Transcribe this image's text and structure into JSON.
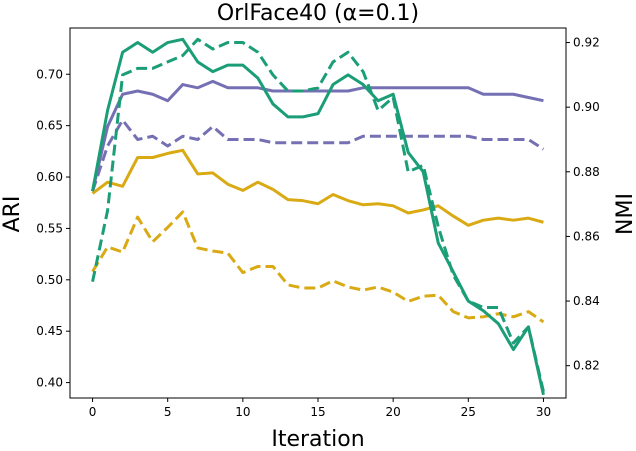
{
  "chart_data": {
    "type": "line",
    "title": "OrlFace40 (α=0.1)",
    "xlabel": "Iteration",
    "ylabel_left": "ARI",
    "ylabel_right": "NMI",
    "xlim": [
      -1.5,
      31.5
    ],
    "ylim_left": [
      0.385,
      0.745
    ],
    "ylim_right": [
      0.81,
      0.9245
    ],
    "x_ticks": [
      0,
      5,
      10,
      15,
      20,
      25,
      30
    ],
    "x_tick_labels": [
      "0",
      "5",
      "10",
      "15",
      "20",
      "25",
      "30"
    ],
    "y_left_ticks": [
      0.4,
      0.45,
      0.5,
      0.55,
      0.6,
      0.65,
      0.7
    ],
    "y_left_tick_labels": [
      "0.40",
      "0.45",
      "0.50",
      "0.55",
      "0.60",
      "0.65",
      "0.70"
    ],
    "y_right_ticks": [
      0.82,
      0.84,
      0.86,
      0.88,
      0.9,
      0.92
    ],
    "y_right_tick_labels": [
      "0.82",
      "0.84",
      "0.86",
      "0.88",
      "0.90",
      "0.92"
    ],
    "grid": false,
    "x": [
      0,
      1,
      2,
      3,
      4,
      5,
      6,
      7,
      8,
      9,
      10,
      11,
      12,
      13,
      14,
      15,
      16,
      17,
      18,
      19,
      20,
      21,
      22,
      23,
      24,
      25,
      26,
      27,
      28,
      29,
      30
    ],
    "series": [
      {
        "axis": "right",
        "color": "#7570b3",
        "style": "solid",
        "values": [
          0.874,
          0.894,
          0.904,
          0.905,
          0.904,
          0.902,
          0.907,
          0.906,
          0.908,
          0.906,
          0.906,
          0.906,
          0.905,
          0.905,
          0.905,
          0.905,
          0.905,
          0.905,
          0.906,
          0.906,
          0.906,
          0.906,
          0.906,
          0.906,
          0.906,
          0.906,
          0.904,
          0.904,
          0.904,
          0.903,
          0.902
        ]
      },
      {
        "axis": "right",
        "color": "#7570b3",
        "style": "dashed",
        "values": [
          0.874,
          0.888,
          0.896,
          0.89,
          0.891,
          0.888,
          0.891,
          0.89,
          0.894,
          0.89,
          0.89,
          0.89,
          0.889,
          0.889,
          0.889,
          0.889,
          0.889,
          0.889,
          0.891,
          0.891,
          0.891,
          0.891,
          0.891,
          0.891,
          0.891,
          0.891,
          0.89,
          0.89,
          0.89,
          0.89,
          0.887
        ]
      },
      {
        "axis": "left",
        "color": "#d9aa14",
        "style": "solid",
        "values": [
          0.584,
          0.595,
          0.591,
          0.619,
          0.619,
          0.623,
          0.626,
          0.603,
          0.604,
          0.593,
          0.587,
          0.595,
          0.588,
          0.578,
          0.577,
          0.574,
          0.583,
          0.577,
          0.573,
          0.574,
          0.572,
          0.565,
          0.568,
          0.572,
          0.562,
          0.553,
          0.558,
          0.56,
          0.558,
          0.56,
          0.556
        ]
      },
      {
        "axis": "left",
        "color": "#d9aa14",
        "style": "dashed",
        "values": [
          0.508,
          0.532,
          0.527,
          0.561,
          0.537,
          0.551,
          0.566,
          0.531,
          0.528,
          0.526,
          0.507,
          0.513,
          0.513,
          0.495,
          0.492,
          0.492,
          0.499,
          0.493,
          0.49,
          0.493,
          0.488,
          0.479,
          0.484,
          0.485,
          0.469,
          0.463,
          0.464,
          0.467,
          0.464,
          0.469,
          0.459
        ]
      },
      {
        "axis": "right",
        "color": "#1b9e77",
        "style": "solid",
        "values": [
          0.874,
          0.899,
          0.917,
          0.92,
          0.917,
          0.92,
          0.921,
          0.914,
          0.911,
          0.913,
          0.913,
          0.909,
          0.901,
          0.897,
          0.897,
          0.898,
          0.907,
          0.91,
          0.907,
          0.902,
          0.904,
          0.886,
          0.88,
          0.858,
          0.849,
          0.84,
          0.837,
          0.833,
          0.825,
          0.832,
          0.811
        ]
      },
      {
        "axis": "right",
        "color": "#1b9e77",
        "style": "dashed",
        "values": [
          0.846,
          0.868,
          0.91,
          0.912,
          0.912,
          0.914,
          0.916,
          0.921,
          0.918,
          0.92,
          0.92,
          0.917,
          0.91,
          0.905,
          0.905,
          0.906,
          0.914,
          0.917,
          0.911,
          0.899,
          0.903,
          0.88,
          0.882,
          0.863,
          0.848,
          0.84,
          0.838,
          0.838,
          0.827,
          0.832,
          0.812
        ]
      }
    ]
  }
}
